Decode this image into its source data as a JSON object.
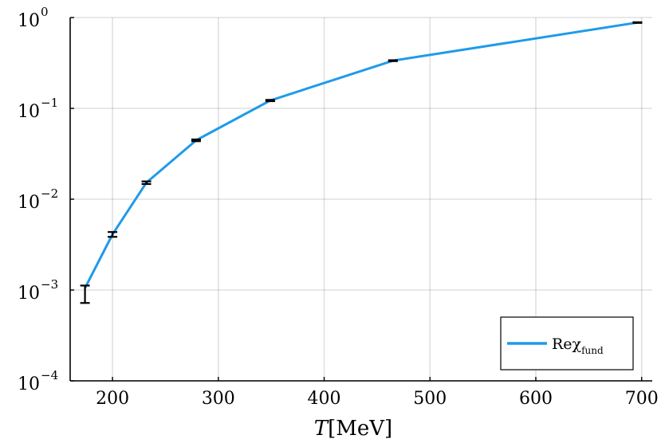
{
  "chart_data": {
    "type": "line",
    "title": "",
    "xlabel": {
      "var": "T",
      "unit": "[MeV]"
    },
    "ylabel": "",
    "xscale": "linear",
    "yscale": "log",
    "xlim": [
      160,
      710
    ],
    "ylim": [
      0.0001,
      1
    ],
    "grid": true,
    "legend_placement": "bottom-right",
    "x_ticks": [
      {
        "value": 200,
        "label": "200"
      },
      {
        "value": 300,
        "label": "300"
      },
      {
        "value": 400,
        "label": "400"
      },
      {
        "value": 500,
        "label": "500"
      },
      {
        "value": 600,
        "label": "600"
      },
      {
        "value": 700,
        "label": "700"
      }
    ],
    "y_ticks": [
      {
        "value": 1,
        "base": "10",
        "exp": "0"
      },
      {
        "value": 0.1,
        "base": "10",
        "exp": "−1"
      },
      {
        "value": 0.01,
        "base": "10",
        "exp": "−2"
      },
      {
        "value": 0.001,
        "base": "10",
        "exp": "−3"
      },
      {
        "value": 0.0001,
        "base": "10",
        "exp": "−4"
      }
    ],
    "series": [
      {
        "name": "Reχ",
        "name_subscript": "fund",
        "color": "#1f9be9",
        "errorbar_color": "#000000",
        "x": [
          174,
          200,
          232,
          279,
          349,
          465,
          696
        ],
        "y": [
          0.00105,
          0.0041,
          0.0152,
          0.0445,
          0.122,
          0.335,
          0.88
        ],
        "y_err_low": [
          0.00033,
          0.00025,
          0.0005,
          0.001,
          0.002,
          0.004,
          0.008
        ],
        "y_err_high": [
          7e-05,
          0.00025,
          0.0005,
          0.001,
          0.002,
          0.004,
          0.008
        ]
      }
    ]
  }
}
